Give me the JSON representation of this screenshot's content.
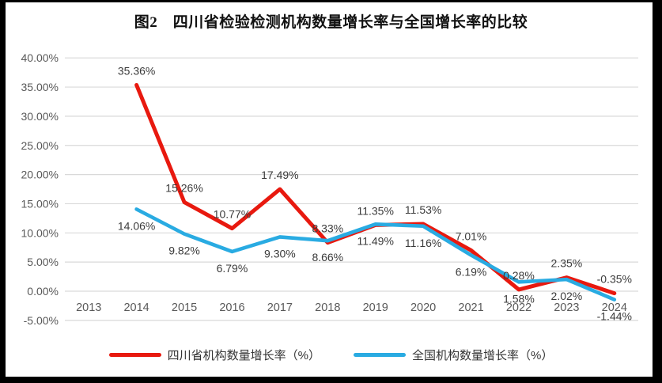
{
  "title": "图2　四川省检验检测机构数量增长率与全国增长率的比较",
  "colors": {
    "frame": "#000000",
    "background": "#FFFFFF",
    "gridline": "#D9D9D9",
    "axis_text": "#595959",
    "label_text": "#3B3B3B",
    "sichuan_red": "#E8190F",
    "national_blue": "#29ABE2"
  },
  "chart_data": {
    "type": "line",
    "title": "图2　四川省检验检测机构数量增长率与全国增长率的比较",
    "categories": [
      "2013",
      "2014",
      "2015",
      "2016",
      "2017",
      "2018",
      "2019",
      "2020",
      "2021",
      "2022",
      "2023",
      "2024"
    ],
    "series": [
      {
        "name": "四川省机构数量增长率（%）",
        "color": "#E8190F",
        "values": [
          null,
          35.36,
          15.26,
          10.77,
          17.49,
          8.33,
          11.35,
          11.53,
          7.01,
          0.28,
          2.35,
          -0.35
        ]
      },
      {
        "name": "全国机构数量增长率（%）",
        "color": "#29ABE2",
        "values": [
          null,
          14.06,
          9.82,
          6.79,
          9.3,
          8.66,
          11.49,
          11.16,
          6.19,
          1.58,
          2.02,
          -1.44
        ]
      }
    ],
    "ylim": [
      -5,
      40
    ],
    "ytick_step": 5,
    "ytick_labels": [
      "40.00%",
      "35.00%",
      "30.00%",
      "25.00%",
      "20.00%",
      "15.00%",
      "10.00%",
      "5.00%",
      "0.00%",
      "-5.00%"
    ],
    "xlabel": "",
    "ylabel": "",
    "grid": true,
    "data_labels": true,
    "legend_position": "bottom"
  }
}
